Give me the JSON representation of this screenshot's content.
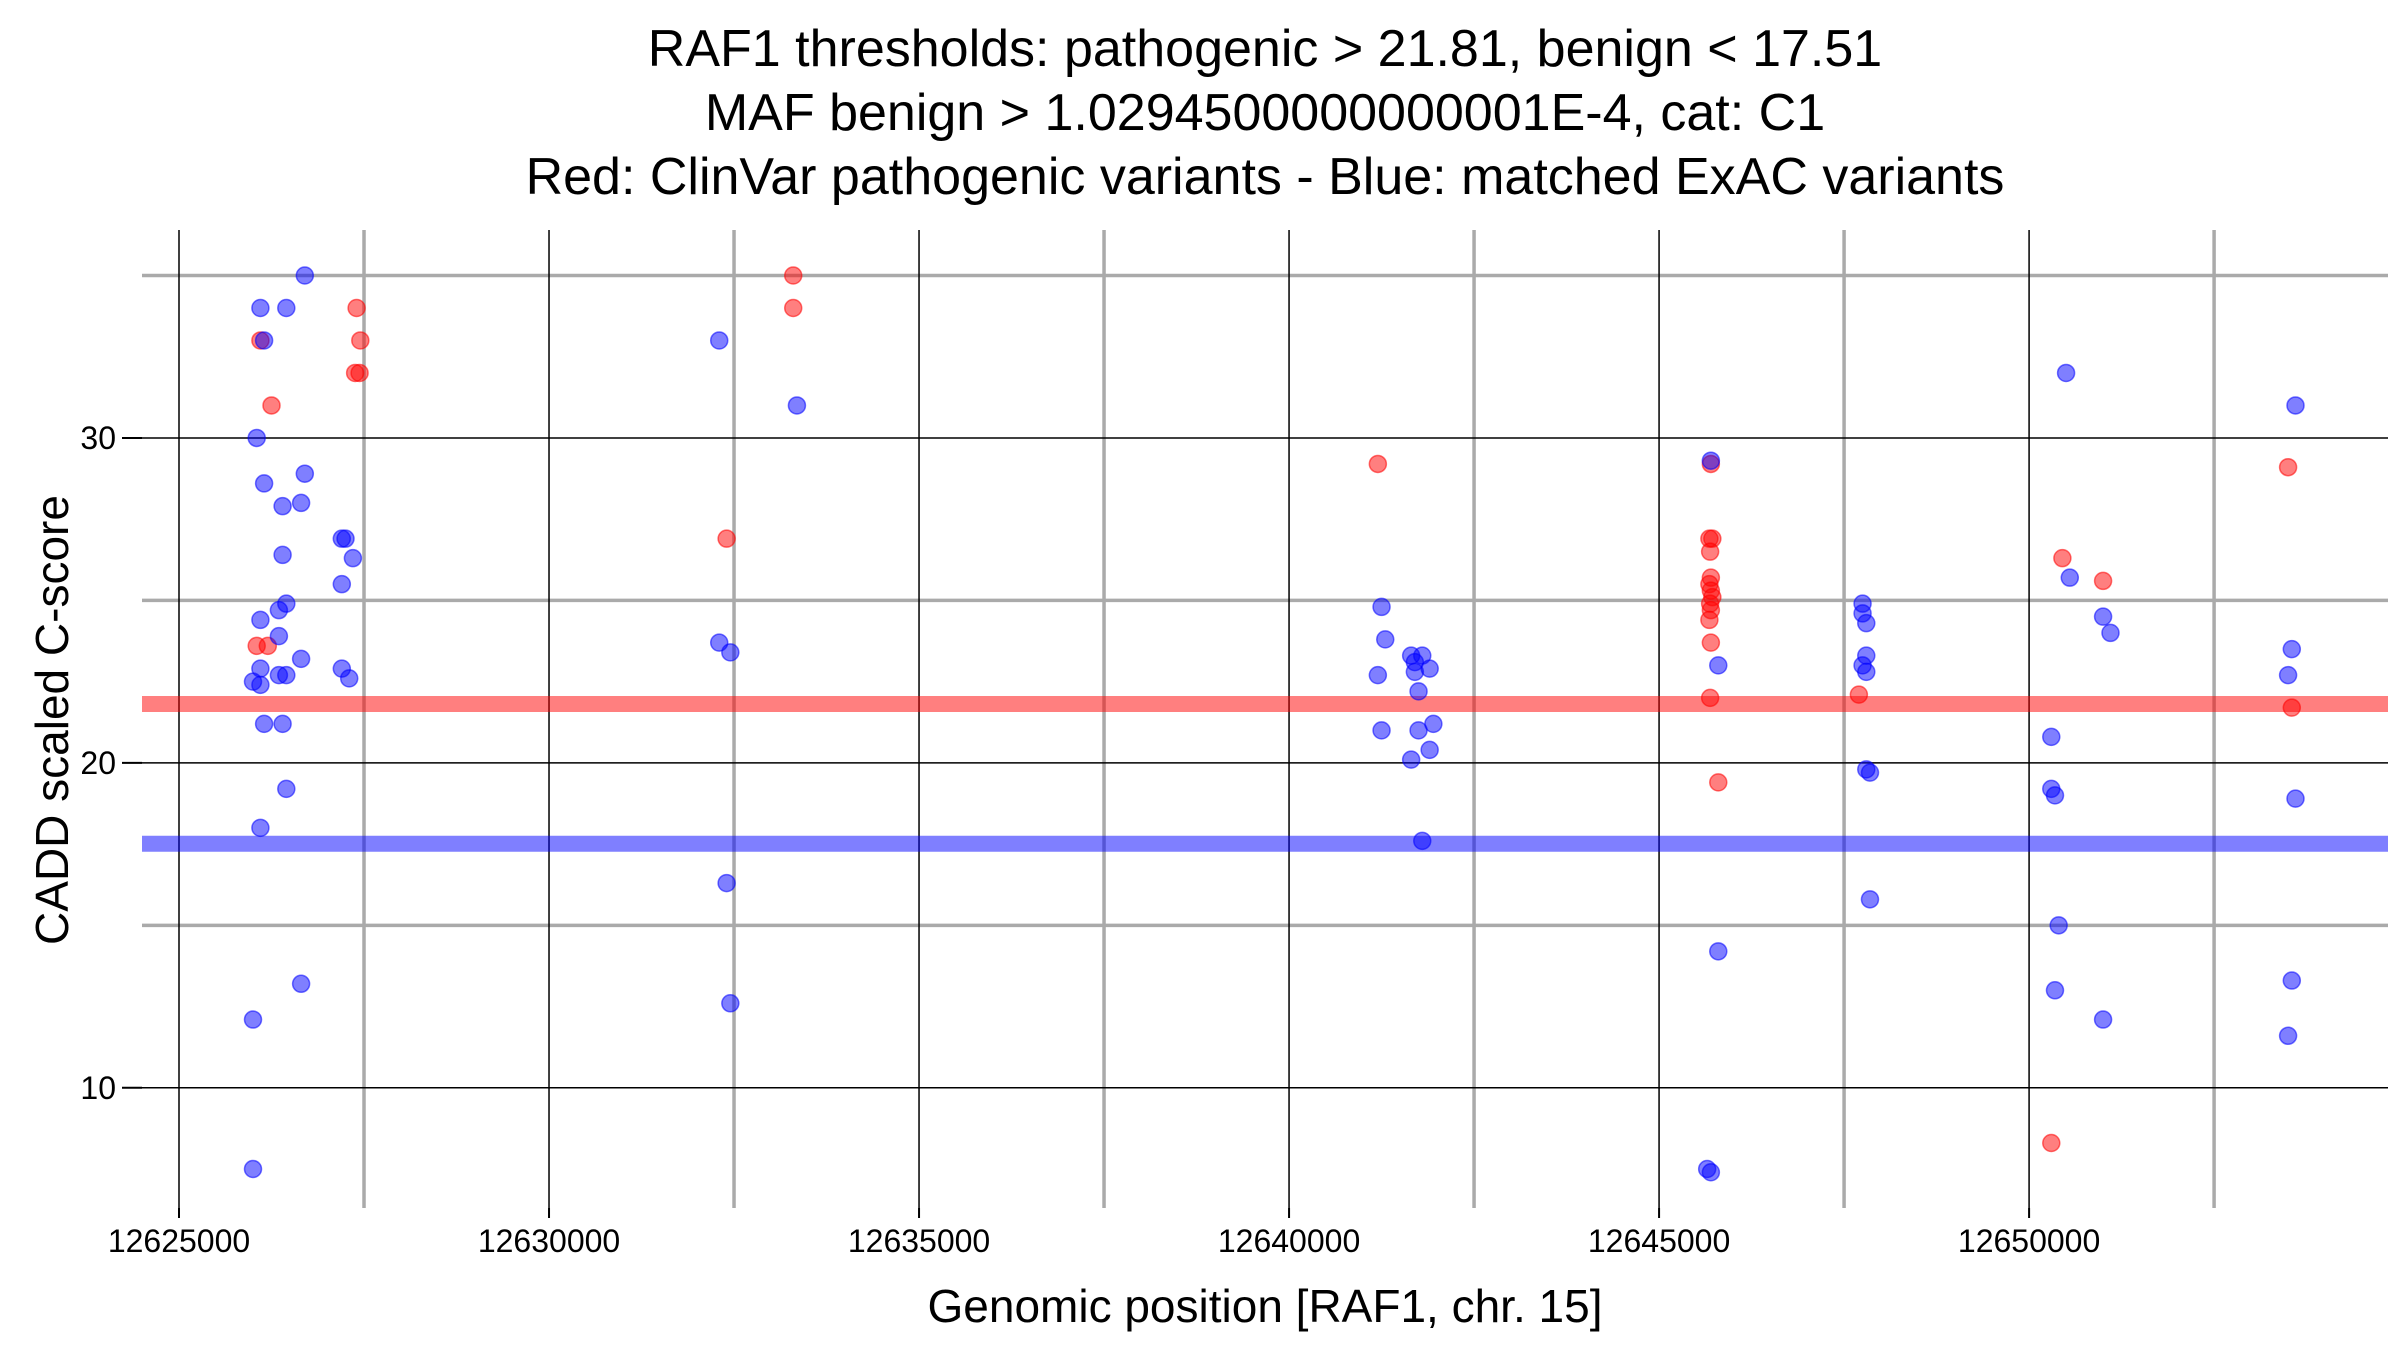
{
  "chart_data": {
    "type": "scatter",
    "title": [
      "RAF1 thresholds: pathogenic > 21.81, benign < 17.51",
      "MAF benign > 1.0294500000000001E-4, cat: C1",
      "Red: ClinVar pathogenic variants - Blue: matched ExAC variants"
    ],
    "xlabel": "Genomic position [RAF1, chr. 15]",
    "ylabel": "CADD scaled C-score",
    "xlim": [
      12624500,
      12654850
    ],
    "ylim": [
      6.3,
      36.4
    ],
    "x_ticks": [
      12625000,
      12630000,
      12635000,
      12640000,
      12645000,
      12650000
    ],
    "x_tick_labels": [
      "12625000",
      "12630000",
      "12635000",
      "12640000",
      "12645000",
      "12650000"
    ],
    "x_minor_ticks": [
      12627500,
      12632500,
      12637500,
      12642500,
      12647500,
      12652500
    ],
    "y_ticks": [
      10,
      20,
      30
    ],
    "y_tick_labels": [
      "10",
      "20",
      "30"
    ],
    "y_minor_ticks": [
      15,
      25,
      35
    ],
    "grid": true,
    "thresholds": [
      {
        "name": "pathogenic",
        "value": 21.81,
        "color": "#ff0000"
      },
      {
        "name": "benign",
        "value": 17.51,
        "color": "#0000ff"
      }
    ],
    "series": [
      {
        "name": "ClinVar pathogenic variants",
        "color": "#ff0000",
        "points": [
          [
            12626100,
            33.0
          ],
          [
            12626250,
            31.0
          ],
          [
            12626050,
            23.6
          ],
          [
            12626200,
            23.6
          ],
          [
            12627400,
            34.0
          ],
          [
            12627450,
            33.0
          ],
          [
            12627380,
            32.0
          ],
          [
            12627440,
            32.0
          ],
          [
            12632400,
            26.9
          ],
          [
            12633300,
            35.0
          ],
          [
            12633300,
            34.0
          ],
          [
            12641200,
            29.2
          ],
          [
            12645700,
            29.2
          ],
          [
            12645680,
            26.9
          ],
          [
            12645720,
            26.9
          ],
          [
            12645690,
            26.5
          ],
          [
            12645700,
            25.7
          ],
          [
            12645680,
            25.5
          ],
          [
            12645700,
            25.3
          ],
          [
            12645720,
            25.1
          ],
          [
            12645690,
            24.9
          ],
          [
            12645700,
            24.7
          ],
          [
            12645680,
            24.4
          ],
          [
            12645700,
            23.7
          ],
          [
            12645690,
            22.0
          ],
          [
            12645800,
            19.4
          ],
          [
            12647700,
            22.1
          ],
          [
            12650450,
            26.3
          ],
          [
            12651000,
            25.6
          ],
          [
            12650300,
            8.3
          ],
          [
            12653500,
            29.1
          ],
          [
            12653550,
            21.7
          ]
        ]
      },
      {
        "name": "matched ExAC variants",
        "color": "#0000ff",
        "points": [
          [
            12626700,
            35.0
          ],
          [
            12626100,
            34.0
          ],
          [
            12626450,
            34.0
          ],
          [
            12626150,
            33.0
          ],
          [
            12626050,
            30.0
          ],
          [
            12626150,
            28.6
          ],
          [
            12626700,
            28.9
          ],
          [
            12626400,
            27.9
          ],
          [
            12626650,
            28.0
          ],
          [
            12627200,
            26.9
          ],
          [
            12627250,
            26.9
          ],
          [
            12626400,
            26.4
          ],
          [
            12627350,
            26.3
          ],
          [
            12627200,
            25.5
          ],
          [
            12626450,
            24.9
          ],
          [
            12626350,
            24.7
          ],
          [
            12626100,
            24.4
          ],
          [
            12626350,
            23.9
          ],
          [
            12626650,
            23.2
          ],
          [
            12626100,
            22.9
          ],
          [
            12627200,
            22.9
          ],
          [
            12626000,
            22.5
          ],
          [
            12626100,
            22.4
          ],
          [
            12626350,
            22.7
          ],
          [
            12626450,
            22.7
          ],
          [
            12627300,
            22.6
          ],
          [
            12626150,
            21.2
          ],
          [
            12626400,
            21.2
          ],
          [
            12626450,
            19.2
          ],
          [
            12626100,
            18.0
          ],
          [
            12626650,
            13.2
          ],
          [
            12626000,
            12.1
          ],
          [
            12626000,
            7.5
          ],
          [
            12632300,
            33.0
          ],
          [
            12633350,
            31.0
          ],
          [
            12632300,
            23.7
          ],
          [
            12632450,
            23.4
          ],
          [
            12632400,
            16.3
          ],
          [
            12632450,
            12.6
          ],
          [
            12641250,
            24.8
          ],
          [
            12641300,
            23.8
          ],
          [
            12641650,
            23.3
          ],
          [
            12641800,
            23.3
          ],
          [
            12641700,
            23.1
          ],
          [
            12641900,
            22.9
          ],
          [
            12641200,
            22.7
          ],
          [
            12641700,
            22.8
          ],
          [
            12641750,
            22.2
          ],
          [
            12641750,
            21.0
          ],
          [
            12641950,
            21.2
          ],
          [
            12641250,
            21.0
          ],
          [
            12641900,
            20.4
          ],
          [
            12641650,
            20.1
          ],
          [
            12641800,
            17.6
          ],
          [
            12645700,
            29.3
          ],
          [
            12645800,
            23.0
          ],
          [
            12645800,
            14.2
          ],
          [
            12645650,
            7.5
          ],
          [
            12645700,
            7.4
          ],
          [
            12647750,
            24.9
          ],
          [
            12647750,
            24.6
          ],
          [
            12647800,
            24.3
          ],
          [
            12647800,
            23.3
          ],
          [
            12647750,
            23.0
          ],
          [
            12647800,
            22.8
          ],
          [
            12647800,
            19.8
          ],
          [
            12647850,
            19.7
          ],
          [
            12647850,
            15.8
          ],
          [
            12650500,
            32.0
          ],
          [
            12650550,
            25.7
          ],
          [
            12651000,
            24.5
          ],
          [
            12651100,
            24.0
          ],
          [
            12650300,
            20.8
          ],
          [
            12650300,
            19.2
          ],
          [
            12650350,
            19.0
          ],
          [
            12650400,
            15.0
          ],
          [
            12650350,
            13.0
          ],
          [
            12651000,
            12.1
          ],
          [
            12653600,
            31.0
          ],
          [
            12653550,
            23.5
          ],
          [
            12653500,
            22.7
          ],
          [
            12653600,
            18.9
          ],
          [
            12653550,
            13.3
          ],
          [
            12653500,
            11.6
          ]
        ]
      }
    ]
  }
}
